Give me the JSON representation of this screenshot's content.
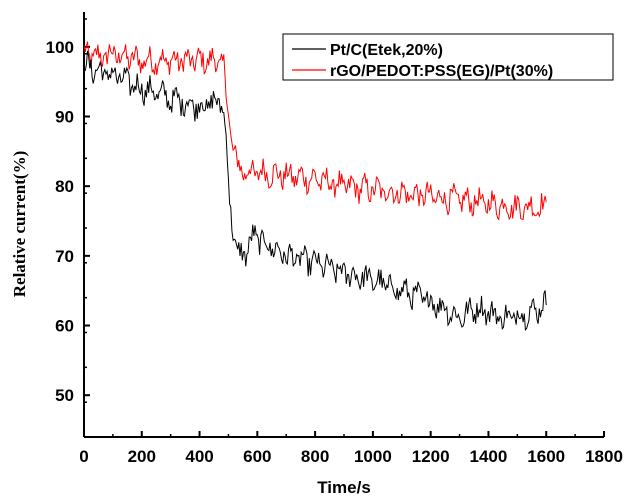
{
  "chart_data": {
    "type": "line",
    "xlabel": "Time/s",
    "ylabel": "Relative current(%)",
    "xlim": [
      0,
      1800
    ],
    "ylim": [
      44,
      105
    ],
    "xticks": [
      0,
      200,
      400,
      600,
      800,
      1000,
      1200,
      1400,
      1600,
      1800
    ],
    "yticks": [
      50,
      60,
      70,
      80,
      90,
      100
    ],
    "legend_position": "top-right",
    "series": [
      {
        "name": "Pt/C(Etek,20%)",
        "color": "#000000",
        "points": [
          [
            0,
            97.5
          ],
          [
            50,
            96.5
          ],
          [
            100,
            96
          ],
          [
            150,
            95
          ],
          [
            200,
            94
          ],
          [
            250,
            93.5
          ],
          [
            300,
            92.5
          ],
          [
            350,
            92
          ],
          [
            400,
            91.5
          ],
          [
            450,
            92
          ],
          [
            480,
            92
          ],
          [
            495,
            85
          ],
          [
            505,
            77
          ],
          [
            520,
            73
          ],
          [
            530,
            70
          ],
          [
            560,
            70.5
          ],
          [
            590,
            73
          ],
          [
            620,
            72
          ],
          [
            700,
            70
          ],
          [
            800,
            69
          ],
          [
            900,
            67.5
          ],
          [
            1000,
            66.5
          ],
          [
            1100,
            65
          ],
          [
            1200,
            63.5
          ],
          [
            1250,
            62.5
          ],
          [
            1300,
            61
          ],
          [
            1350,
            62.5
          ],
          [
            1400,
            62
          ],
          [
            1450,
            61
          ],
          [
            1500,
            61.5
          ],
          [
            1550,
            62
          ],
          [
            1600,
            63
          ]
        ],
        "noise": 1.5
      },
      {
        "name": "rGO/PEDOT:PSS(EG)/Pt(30%)",
        "color": "#ff0000",
        "points": [
          [
            0,
            99
          ],
          [
            50,
            98.5
          ],
          [
            100,
            99
          ],
          [
            150,
            98.5
          ],
          [
            200,
            98
          ],
          [
            300,
            98
          ],
          [
            400,
            98
          ],
          [
            470,
            98
          ],
          [
            485,
            97
          ],
          [
            495,
            92
          ],
          [
            510,
            87
          ],
          [
            530,
            83
          ],
          [
            560,
            82
          ],
          [
            600,
            82
          ],
          [
            700,
            81.5
          ],
          [
            800,
            81
          ],
          [
            900,
            80
          ],
          [
            1000,
            79.5
          ],
          [
            1100,
            79
          ],
          [
            1200,
            78.5
          ],
          [
            1300,
            78
          ],
          [
            1400,
            77.5
          ],
          [
            1500,
            77
          ],
          [
            1550,
            77
          ],
          [
            1600,
            77
          ]
        ],
        "noise": 1.5
      }
    ]
  }
}
